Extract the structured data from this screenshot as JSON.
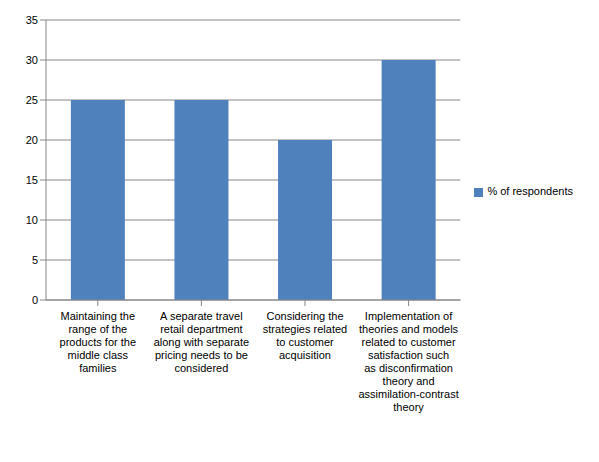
{
  "chart_data": {
    "type": "bar",
    "categories": [
      "Maintaining the range of the products for the middle class families",
      "A separate travel retail department along with separate pricing needs to be considered",
      "Considering the strategies related to customer acquisition",
      "Implementation of theories and models related to customer satisfaction such as disconfirmation theory and assimilation-contrast theory"
    ],
    "series": [
      {
        "name": "% of respondents",
        "color": "#4f81bd",
        "values": [
          25,
          25,
          20,
          30
        ]
      }
    ],
    "ylim": [
      0,
      35
    ],
    "yticks": [
      0,
      5,
      10,
      15,
      20,
      25,
      30,
      35
    ],
    "grid": true,
    "legend": "right"
  }
}
